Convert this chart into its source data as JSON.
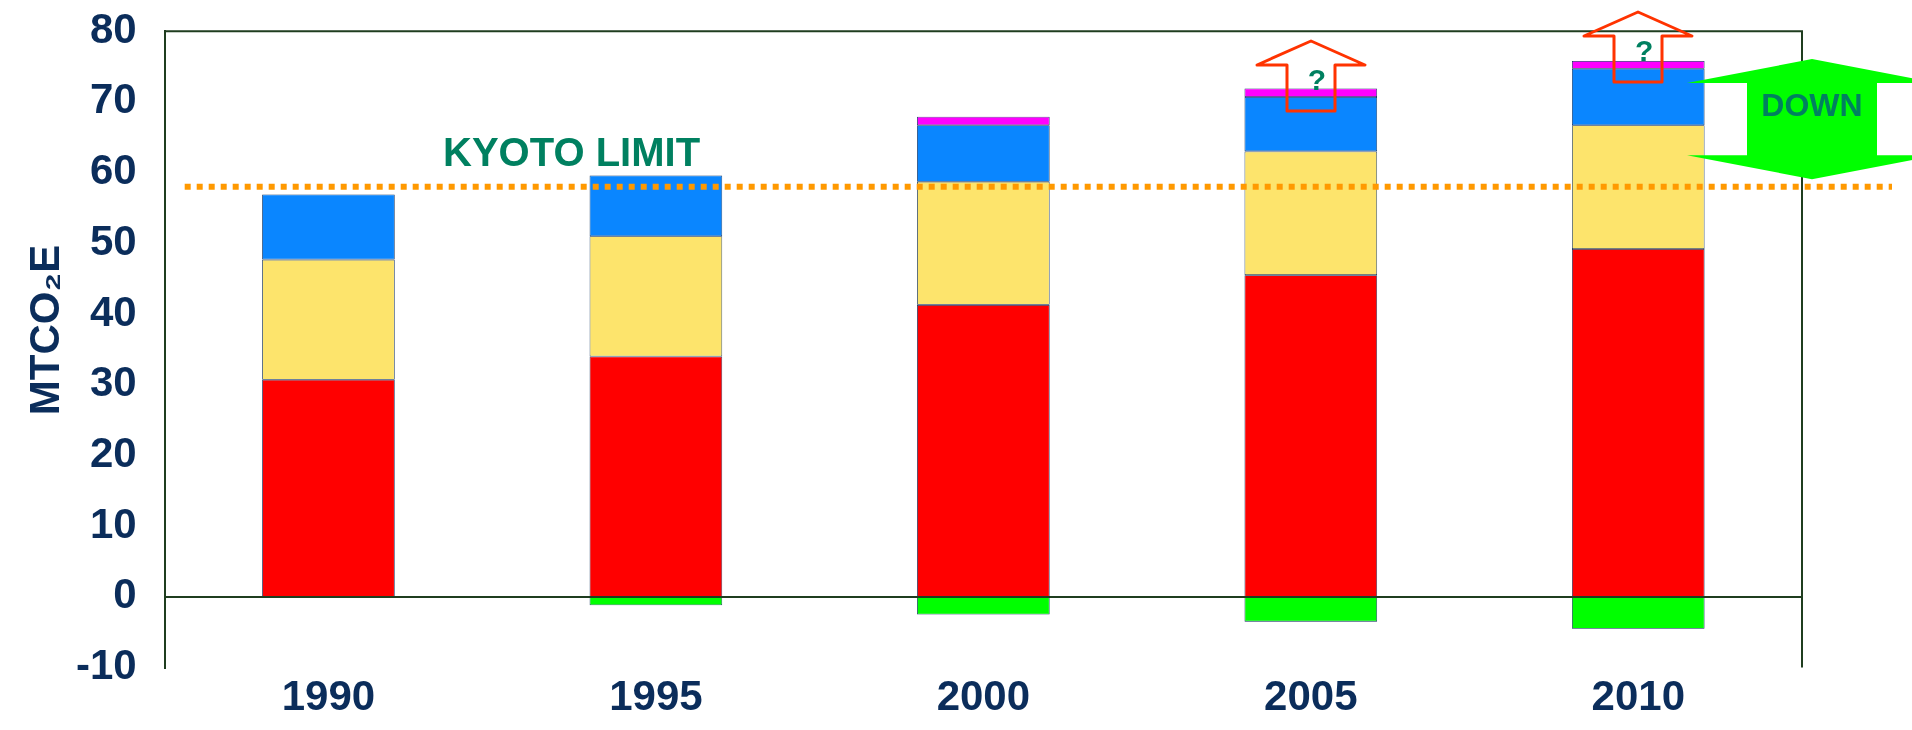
{
  "chart_data": {
    "type": "bar",
    "stacked": true,
    "ylabel": "MTCO₂E",
    "categories": [
      "1990",
      "1995",
      "2000",
      "2005",
      "2010"
    ],
    "series": [
      {
        "color": "#ff0000",
        "values": [
          30.7,
          34.0,
          41.3,
          45.5,
          49.2
        ]
      },
      {
        "color": "#fde46c",
        "values": [
          17.0,
          17.0,
          17.4,
          17.5,
          17.5
        ]
      },
      {
        "color": "#0a86ff",
        "values": [
          9.2,
          8.6,
          8.0,
          7.7,
          8.0
        ]
      },
      {
        "color": "#ff00ff",
        "values": [
          null,
          null,
          1.2,
          1.2,
          1.1
        ]
      },
      {
        "color": "#00ff00",
        "values": [
          null,
          -1.2,
          -2.5,
          -3.5,
          -4.5
        ]
      }
    ],
    "ylim": [
      -10,
      80
    ],
    "yticks": [
      -10,
      0,
      10,
      20,
      30,
      40,
      50,
      60,
      70,
      80
    ],
    "grid": false,
    "legend": false,
    "ref_lines": [
      {
        "axis": "y",
        "value": 58,
        "label": "KYOTO LIMIT",
        "color": "#ff9900",
        "line_style": "dotted"
      }
    ],
    "annotations": [
      {
        "text": "?",
        "x": "2005",
        "y": 72
      },
      {
        "text": "?",
        "x": "2010",
        "y": 76
      },
      "DOWN"
    ]
  }
}
